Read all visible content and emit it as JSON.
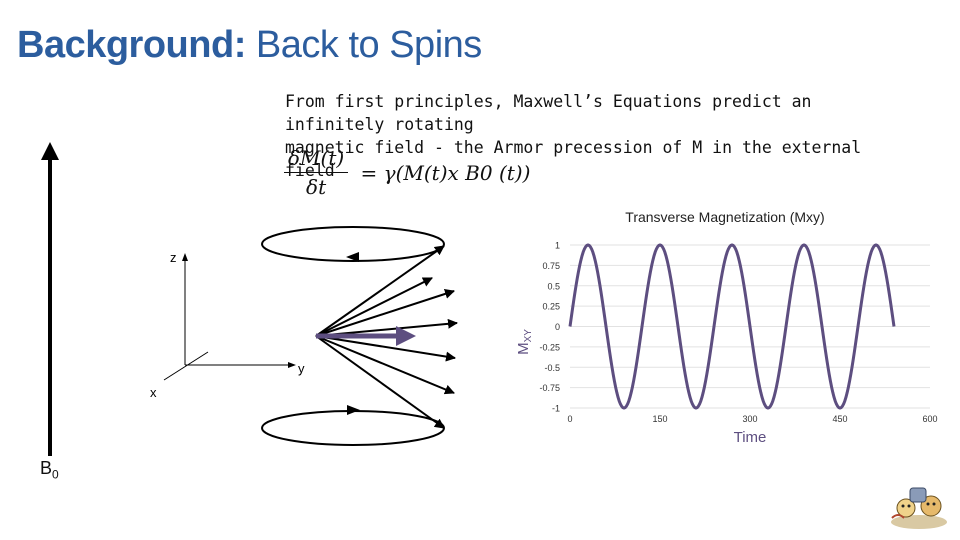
{
  "slide": {
    "title_bold": "Background:",
    "title_rest": "Back to Spins",
    "intro_line1": "From first principles, Maxwell’s Equations predict an infinitely rotating",
    "intro_line2": "magnetic field - the Armor precession of M in the external field"
  },
  "equation": {
    "numerator": "δM(t)",
    "denominator": "δt",
    "rhs": "= γ(M(t)x B0 (t))"
  },
  "field": {
    "label": "B",
    "subscript": "0"
  },
  "axes": {
    "z": "z",
    "y": "y",
    "x": "x"
  },
  "colors": {
    "title": "#2c5d9e",
    "accent": "#5d4e80",
    "series": "#5d4e80"
  },
  "chart_data": {
    "type": "line",
    "title": "Transverse Magnetization (Mxy)",
    "xlabel": "Time",
    "ylabel": "M",
    "ylabel_sub": "XY",
    "xlim": [
      0,
      600
    ],
    "ylim": [
      -1,
      1
    ],
    "xticks": [
      "0",
      "150",
      "300",
      "450",
      "600"
    ],
    "yticks": [
      "1",
      "0.75",
      "0.5",
      "0.25",
      "0",
      "-0.25",
      "-0.5",
      "-0.75",
      "-1"
    ],
    "function": "sin",
    "period": 120,
    "x_start": 0,
    "x_end": 540,
    "grid": true,
    "series": [
      {
        "values_note": "",
        "color": "#5d4e80"
      }
    ]
  }
}
